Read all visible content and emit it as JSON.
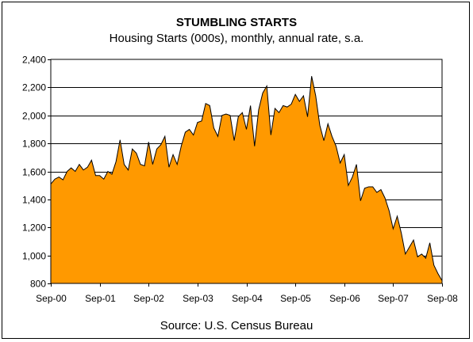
{
  "chart_data": {
    "type": "area",
    "title": "STUMBLING STARTS",
    "subtitle": "Housing Starts (000s), monthly, annual rate, s.a.",
    "source": "Source: U.S. Census Bureau",
    "xlabel": "",
    "ylabel": "",
    "ylim": [
      800,
      2400
    ],
    "yticks": [
      800,
      1000,
      1200,
      1400,
      1600,
      1800,
      2000,
      2200,
      2400
    ],
    "ytick_labels": [
      "800",
      "1,000",
      "1,200",
      "1,400",
      "1,600",
      "1,800",
      "2,000",
      "2,200",
      "2,400"
    ],
    "xtick_labels": [
      "Sep-00",
      "Sep-01",
      "Sep-02",
      "Sep-03",
      "Sep-04",
      "Sep-05",
      "Sep-06",
      "Sep-07",
      "Sep-08"
    ],
    "grid": "horizontal",
    "fill_color": "#FF9900",
    "line_color": "#000000",
    "x": [
      "Sep-00",
      "Oct-00",
      "Nov-00",
      "Dec-00",
      "Jan-01",
      "Feb-01",
      "Mar-01",
      "Apr-01",
      "May-01",
      "Jun-01",
      "Jul-01",
      "Aug-01",
      "Sep-01",
      "Oct-01",
      "Nov-01",
      "Dec-01",
      "Jan-02",
      "Feb-02",
      "Mar-02",
      "Apr-02",
      "May-02",
      "Jun-02",
      "Jul-02",
      "Aug-02",
      "Sep-02",
      "Oct-02",
      "Nov-02",
      "Dec-02",
      "Jan-03",
      "Feb-03",
      "Mar-03",
      "Apr-03",
      "May-03",
      "Jun-03",
      "Jul-03",
      "Aug-03",
      "Sep-03",
      "Oct-03",
      "Nov-03",
      "Dec-03",
      "Jan-04",
      "Feb-04",
      "Mar-04",
      "Apr-04",
      "May-04",
      "Jun-04",
      "Jul-04",
      "Aug-04",
      "Sep-04",
      "Oct-04",
      "Nov-04",
      "Dec-04",
      "Jan-05",
      "Feb-05",
      "Mar-05",
      "Apr-05",
      "May-05",
      "Jun-05",
      "Jul-05",
      "Aug-05",
      "Sep-05",
      "Oct-05",
      "Nov-05",
      "Dec-05",
      "Jan-06",
      "Feb-06",
      "Mar-06",
      "Apr-06",
      "May-06",
      "Jun-06",
      "Jul-06",
      "Aug-06",
      "Sep-06",
      "Oct-06",
      "Nov-06",
      "Dec-06",
      "Jan-07",
      "Feb-07",
      "Mar-07",
      "Apr-07",
      "May-07",
      "Jun-07",
      "Jul-07",
      "Aug-07",
      "Sep-07",
      "Oct-07",
      "Nov-07",
      "Dec-07",
      "Jan-08",
      "Feb-08",
      "Mar-08",
      "Apr-08",
      "May-08",
      "Jun-08",
      "Jul-08",
      "Aug-08",
      "Sep-08"
    ],
    "values": [
      1510,
      1545,
      1560,
      1540,
      1600,
      1625,
      1600,
      1650,
      1610,
      1630,
      1680,
      1570,
      1570,
      1545,
      1600,
      1580,
      1670,
      1825,
      1650,
      1610,
      1760,
      1730,
      1650,
      1640,
      1810,
      1650,
      1760,
      1790,
      1850,
      1630,
      1720,
      1650,
      1780,
      1880,
      1900,
      1860,
      1950,
      1960,
      2085,
      2070,
      1910,
      1850,
      2000,
      2010,
      2000,
      1820,
      1990,
      2020,
      1900,
      2070,
      1780,
      2040,
      2160,
      2210,
      1860,
      2050,
      2020,
      2070,
      2060,
      2080,
      2150,
      2100,
      2140,
      1990,
      2280,
      2140,
      1930,
      1820,
      1940,
      1850,
      1780,
      1660,
      1720,
      1500,
      1560,
      1650,
      1390,
      1480,
      1490,
      1490,
      1450,
      1470,
      1410,
      1320,
      1190,
      1280,
      1160,
      1010,
      1060,
      1110,
      990,
      1010,
      980,
      1090,
      930,
      870,
      820
    ]
  }
}
